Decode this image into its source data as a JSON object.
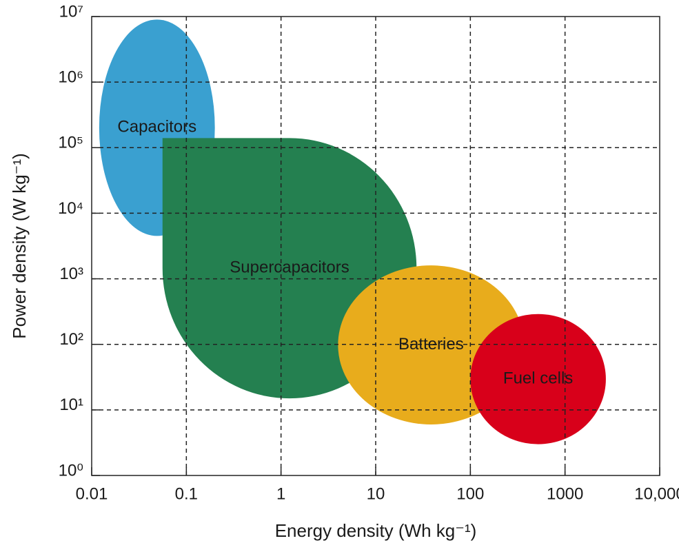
{
  "chart_data": {
    "type": "region",
    "x_label": "Energy density (Wh kg⁻¹)",
    "y_label": "Power density (W kg⁻¹)",
    "xscale": "log",
    "yscale": "log",
    "grid": true,
    "xlim": [
      0.01,
      10000
    ],
    "xticks": [
      0.01,
      0.1,
      1,
      10,
      100,
      1000,
      {
        "value": 10000,
        "label": "10,000"
      }
    ],
    "ylim": [
      1,
      10000000
    ],
    "yticks": [
      {
        "value": 1,
        "label": "10⁰"
      },
      {
        "value": 10,
        "label": "10¹"
      },
      {
        "value": 100,
        "label": "10²"
      },
      {
        "value": 1000,
        "label": "10³"
      },
      {
        "value": 10000,
        "label": "10⁴"
      },
      {
        "value": 100000,
        "label": "10⁵"
      },
      {
        "value": 1000000,
        "label": "10⁶"
      },
      {
        "value": 10000000,
        "label": "10⁷"
      }
    ],
    "series": [
      {
        "name": "Capacitors",
        "shape": "ellipse",
        "color": "#3aa0d0",
        "x": [
          0.012,
          0.2
        ],
        "values": [
          4500,
          9000000
        ]
      },
      {
        "name": "Supercapacitors",
        "shape": "teardrop",
        "color": "#248050",
        "x": [
          0.056,
          27
        ],
        "values": [
          15,
          140000
        ]
      },
      {
        "name": "Batteries",
        "shape": "ellipse",
        "color": "#e8ac1c",
        "x": [
          4,
          370
        ],
        "values": [
          6,
          1600
        ]
      },
      {
        "name": "Fuel cells",
        "shape": "ellipse",
        "color": "#d8001a",
        "x": [
          100,
          2700
        ],
        "values": [
          3,
          290
        ]
      }
    ]
  }
}
